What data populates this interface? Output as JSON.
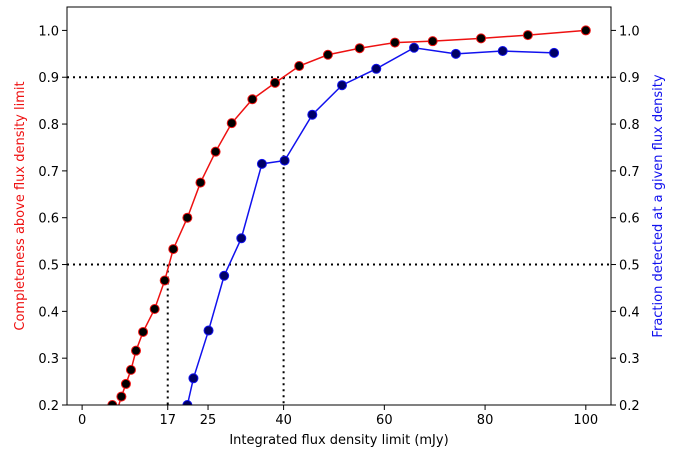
{
  "chart_data": {
    "type": "line",
    "xlabel": "Integrated flux density limit (mJy)",
    "ylabel_left": "Completeness above flux density limit",
    "ylabel_right": "Fraction detected at a given flux density",
    "xlim": [
      -3,
      105
    ],
    "ylim": [
      0.2,
      1.05
    ],
    "xticks": [
      0,
      17,
      25,
      40,
      60,
      80,
      100
    ],
    "yticks": [
      0.2,
      0.3,
      0.4,
      0.5,
      0.6,
      0.7,
      0.8,
      0.9,
      1.0
    ],
    "grid": false,
    "series": [
      {
        "axis": "left",
        "color": "#ee1111",
        "marker_fill": "#000000",
        "x": [
          6,
          7,
          7.8,
          8.7,
          9.7,
          10.7,
          12.1,
          14.4,
          16.4,
          18.1,
          20.9,
          23.5,
          26.5,
          29.7,
          33.8,
          38.3,
          43.1,
          48.8,
          55.1,
          62.1,
          69.6,
          79.2,
          88.5,
          100
        ],
        "y": [
          0.2,
          0.19,
          0.218,
          0.245,
          0.275,
          0.316,
          0.356,
          0.405,
          0.466,
          0.533,
          0.6,
          0.675,
          0.741,
          0.802,
          0.853,
          0.888,
          0.924,
          0.948,
          0.962,
          0.974,
          0.977,
          0.983,
          0.99,
          1.0
        ]
      },
      {
        "axis": "right",
        "color": "#1111ee",
        "marker_fill": "#000066",
        "x": [
          20.9,
          22.1,
          25.1,
          28.2,
          31.6,
          35.7,
          40.2,
          45.7,
          51.6,
          58.4,
          65.9,
          74.2,
          83.5,
          93.7
        ],
        "y": [
          0.2,
          0.257,
          0.359,
          0.476,
          0.556,
          0.715,
          0.722,
          0.82,
          0.883,
          0.918,
          0.963,
          0.95,
          0.956,
          0.952
        ]
      }
    ],
    "reference_lines": {
      "horizontal": [
        0.5,
        0.9
      ],
      "vertical": [
        {
          "x": 17,
          "y_top": 0.5
        },
        {
          "x": 40,
          "y_top": 0.9
        }
      ]
    }
  }
}
